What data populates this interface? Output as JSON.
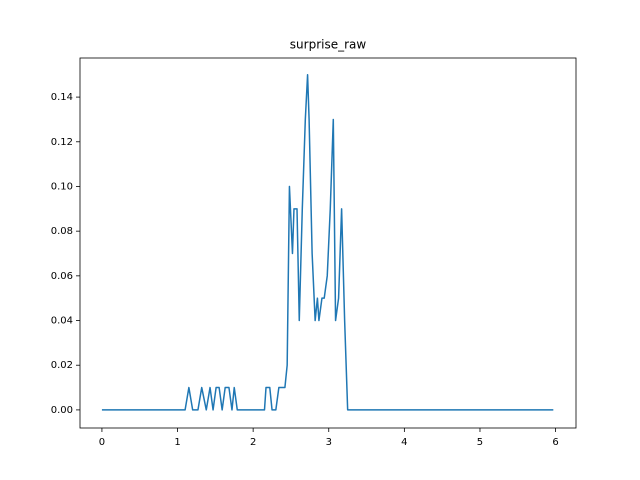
{
  "chart_data": {
    "type": "line",
    "title": "surprise_raw",
    "x": [
      0,
      1.1,
      1.15,
      1.2,
      1.27,
      1.32,
      1.38,
      1.43,
      1.47,
      1.51,
      1.55,
      1.59,
      1.63,
      1.68,
      1.72,
      1.75,
      1.79,
      2.15,
      2.17,
      2.22,
      2.25,
      2.3,
      2.34,
      2.42,
      2.45,
      2.48,
      2.52,
      2.54,
      2.58,
      2.61,
      2.65,
      2.69,
      2.72,
      2.74,
      2.78,
      2.82,
      2.85,
      2.87,
      2.91,
      2.94,
      2.98,
      3.02,
      3.06,
      3.09,
      3.13,
      3.17,
      3.21,
      3.25,
      5.97
    ],
    "series": [
      {
        "name": "surprise_raw",
        "color": "#1f77b4",
        "values": [
          0,
          0,
          0.01,
          0,
          0,
          0.01,
          0,
          0.01,
          0,
          0.01,
          0.01,
          0,
          0.01,
          0.01,
          0,
          0.01,
          0,
          0,
          0.01,
          0.01,
          0,
          0,
          0.01,
          0.01,
          0.02,
          0.1,
          0.07,
          0.09,
          0.09,
          0.04,
          0.09,
          0.13,
          0.15,
          0.13,
          0.07,
          0.04,
          0.05,
          0.04,
          0.05,
          0.05,
          0.06,
          0.09,
          0.13,
          0.04,
          0.05,
          0.09,
          0.04,
          0,
          0
        ]
      }
    ],
    "xlim": [
      -0.29,
      6.27
    ],
    "ylim": [
      -0.0081,
      0.1575
    ],
    "xticks": [
      0,
      1,
      2,
      3,
      4,
      5,
      6
    ],
    "yticks": [
      {
        "value": 0,
        "label": "0.00"
      },
      {
        "value": 0.02,
        "label": "0.02"
      },
      {
        "value": 0.04,
        "label": "0.04"
      },
      {
        "value": 0.06,
        "label": "0.06"
      },
      {
        "value": 0.08,
        "label": "0.08"
      },
      {
        "value": 0.1,
        "label": "0.10"
      },
      {
        "value": 0.12,
        "label": "0.12"
      },
      {
        "value": 0.14,
        "label": "0.14"
      }
    ],
    "grid": false
  }
}
